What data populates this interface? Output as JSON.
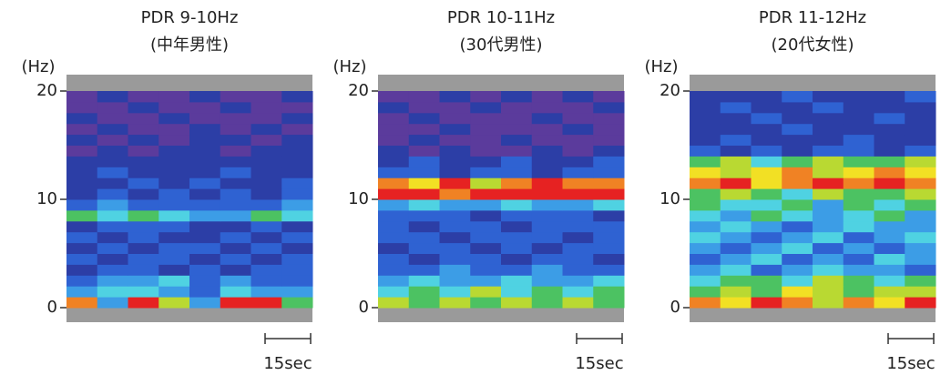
{
  "chart_data": [
    {
      "type": "heatmap",
      "title": "PDR 9-10Hz",
      "subtitle": "(中年男性)",
      "y_label": "(Hz)",
      "ylim": [
        0,
        20
      ],
      "yticks": [
        0,
        10,
        20
      ],
      "scale_label": "15sec",
      "colorscale": [
        "#5b3b9c",
        "#2c3ea6",
        "#2f62d2",
        "#3c9de6",
        "#4fd2e2",
        "#4cc262",
        "#b9d932",
        "#f2e024",
        "#f08224",
        "#e62222"
      ],
      "z": [
        [
          8,
          3,
          9,
          6,
          3,
          9,
          9,
          5
        ],
        [
          3,
          4,
          4,
          3,
          2,
          4,
          3,
          3
        ],
        [
          2,
          3,
          3,
          4,
          2,
          3,
          2,
          2
        ],
        [
          1,
          2,
          2,
          1,
          2,
          1,
          2,
          2
        ],
        [
          2,
          1,
          2,
          2,
          1,
          2,
          1,
          2
        ],
        [
          1,
          2,
          1,
          2,
          2,
          1,
          2,
          1
        ],
        [
          2,
          1,
          2,
          1,
          1,
          2,
          1,
          2
        ],
        [
          1,
          2,
          2,
          2,
          1,
          1,
          2,
          1
        ],
        [
          5,
          4,
          5,
          4,
          3,
          3,
          5,
          4
        ],
        [
          2,
          3,
          2,
          2,
          2,
          2,
          2,
          3
        ],
        [
          1,
          2,
          1,
          2,
          1,
          2,
          1,
          2
        ],
        [
          1,
          1,
          2,
          1,
          2,
          1,
          1,
          2
        ],
        [
          1,
          2,
          1,
          1,
          1,
          2,
          1,
          1
        ],
        [
          1,
          1,
          1,
          1,
          1,
          1,
          1,
          1
        ],
        [
          0,
          1,
          0,
          1,
          1,
          0,
          1,
          1
        ],
        [
          1,
          0,
          1,
          0,
          1,
          1,
          0,
          1
        ],
        [
          0,
          1,
          0,
          0,
          1,
          0,
          1,
          0
        ],
        [
          1,
          0,
          0,
          1,
          0,
          0,
          0,
          1
        ],
        [
          0,
          0,
          1,
          0,
          0,
          1,
          0,
          0
        ],
        [
          0,
          1,
          0,
          0,
          1,
          0,
          0,
          1
        ]
      ]
    },
    {
      "type": "heatmap",
      "title": "PDR 10-11Hz",
      "subtitle": "(30代男性)",
      "y_label": "(Hz)",
      "ylim": [
        0,
        20
      ],
      "yticks": [
        0,
        10,
        20
      ],
      "scale_label": "15sec",
      "colorscale": [
        "#5b3b9c",
        "#2c3ea6",
        "#2f62d2",
        "#3c9de6",
        "#4fd2e2",
        "#4cc262",
        "#b9d932",
        "#f2e024",
        "#f08224",
        "#e62222"
      ],
      "z": [
        [
          6,
          5,
          6,
          5,
          6,
          5,
          6,
          5
        ],
        [
          4,
          5,
          4,
          6,
          4,
          5,
          4,
          5
        ],
        [
          3,
          4,
          3,
          3,
          4,
          3,
          3,
          4
        ],
        [
          2,
          2,
          3,
          2,
          2,
          3,
          2,
          2
        ],
        [
          2,
          1,
          2,
          2,
          1,
          2,
          2,
          1
        ],
        [
          1,
          2,
          2,
          1,
          2,
          1,
          2,
          2
        ],
        [
          2,
          2,
          1,
          2,
          2,
          2,
          1,
          2
        ],
        [
          2,
          1,
          2,
          2,
          1,
          2,
          2,
          2
        ],
        [
          2,
          2,
          2,
          1,
          2,
          2,
          2,
          1
        ],
        [
          3,
          4,
          3,
          3,
          4,
          3,
          3,
          4
        ],
        [
          9,
          9,
          8,
          9,
          9,
          9,
          9,
          9
        ],
        [
          8,
          7,
          9,
          6,
          8,
          9,
          8,
          8
        ],
        [
          2,
          2,
          1,
          2,
          2,
          1,
          2,
          2
        ],
        [
          1,
          2,
          1,
          1,
          2,
          1,
          1,
          2
        ],
        [
          1,
          0,
          1,
          0,
          0,
          1,
          0,
          1
        ],
        [
          0,
          1,
          0,
          0,
          1,
          0,
          0,
          0
        ],
        [
          0,
          0,
          1,
          0,
          0,
          0,
          1,
          0
        ],
        [
          0,
          1,
          0,
          0,
          0,
          1,
          0,
          0
        ],
        [
          1,
          0,
          0,
          1,
          0,
          0,
          0,
          1
        ],
        [
          0,
          0,
          1,
          0,
          1,
          0,
          1,
          0
        ]
      ]
    },
    {
      "type": "heatmap",
      "title": "PDR 11-12Hz",
      "subtitle": "(20代女性)",
      "y_label": "(Hz)",
      "ylim": [
        0,
        20
      ],
      "yticks": [
        0,
        10,
        20
      ],
      "scale_label": "15sec",
      "colorscale": [
        "#5b3b9c",
        "#2c3ea6",
        "#2f62d2",
        "#3c9de6",
        "#4fd2e2",
        "#4cc262",
        "#b9d932",
        "#f2e024",
        "#f08224",
        "#e62222"
      ],
      "z": [
        [
          8,
          7,
          9,
          8,
          6,
          8,
          7,
          9
        ],
        [
          5,
          6,
          5,
          7,
          6,
          5,
          6,
          6
        ],
        [
          4,
          5,
          5,
          4,
          6,
          5,
          4,
          5
        ],
        [
          3,
          4,
          2,
          3,
          4,
          3,
          3,
          2
        ],
        [
          2,
          3,
          4,
          2,
          3,
          2,
          4,
          3
        ],
        [
          3,
          2,
          3,
          4,
          2,
          3,
          2,
          3
        ],
        [
          4,
          3,
          2,
          3,
          4,
          2,
          3,
          4
        ],
        [
          3,
          4,
          3,
          2,
          3,
          4,
          3,
          3
        ],
        [
          4,
          3,
          5,
          4,
          3,
          4,
          5,
          3
        ],
        [
          5,
          4,
          4,
          5,
          3,
          5,
          4,
          5
        ],
        [
          5,
          6,
          5,
          4,
          6,
          5,
          5,
          6
        ],
        [
          8,
          9,
          7,
          8,
          9,
          8,
          9,
          8
        ],
        [
          7,
          6,
          7,
          8,
          6,
          7,
          8,
          7
        ],
        [
          5,
          6,
          4,
          5,
          6,
          5,
          5,
          6
        ],
        [
          2,
          1,
          2,
          1,
          2,
          2,
          1,
          2
        ],
        [
          1,
          2,
          1,
          1,
          1,
          2,
          1,
          1
        ],
        [
          1,
          1,
          1,
          2,
          1,
          1,
          1,
          1
        ],
        [
          1,
          1,
          2,
          1,
          1,
          1,
          2,
          1
        ],
        [
          1,
          2,
          1,
          1,
          2,
          1,
          1,
          1
        ],
        [
          1,
          1,
          1,
          2,
          1,
          1,
          1,
          2
        ]
      ]
    }
  ]
}
